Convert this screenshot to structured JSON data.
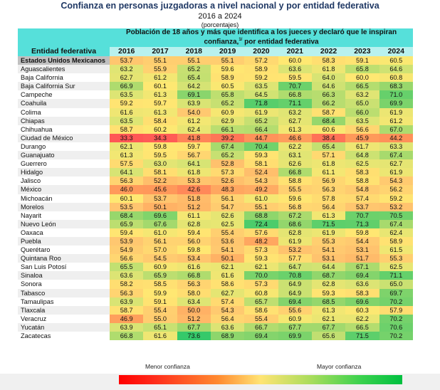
{
  "header": {
    "title": "Confianza en personas juzgadoras a nivel nacional y por entidad federativa",
    "subtitle": "2016 a 2024",
    "unit": "(porcentajes)"
  },
  "chart_data": {
    "type": "heatmap",
    "title": "Confianza en personas juzgadoras a nivel nacional y por entidad federativa",
    "subtitle": "2016 a 2024",
    "unit": "porcentajes",
    "group_header_line1": "Población de 18 años y más que identifica a los jueces y declaró que le inspiran",
    "group_header_line2_pre": "confianza,",
    "group_header_footnote": "1/",
    "group_header_line2_post": " por entidad federativa",
    "row_header": "Entidad federativa",
    "columns": [
      "2016",
      "2017",
      "2018",
      "2019",
      "2020",
      "2021",
      "2022",
      "2023",
      "2024"
    ],
    "color_scale": {
      "low_label": "Menor confianza",
      "high_label": "Mayor confianza",
      "low_color": "#ff0000",
      "mid_color": "#ffe474",
      "high_color": "#00c040"
    },
    "rows": [
      {
        "name": "Estados Unidos Mexicanos",
        "values": [
          53.7,
          55.1,
          55.1,
          55.1,
          57.2,
          60.0,
          58.3,
          59.1,
          60.5
        ]
      },
      {
        "name": "Aguascalientes",
        "values": [
          63.2,
          55.9,
          65.2,
          59.6,
          58.9,
          63.6,
          61.8,
          65.8,
          64.6
        ]
      },
      {
        "name": "Baja California",
        "values": [
          62.7,
          61.2,
          65.4,
          58.9,
          59.2,
          59.5,
          64.0,
          60.0,
          60.8
        ]
      },
      {
        "name": "Baja California Sur",
        "values": [
          66.9,
          60.1,
          64.2,
          60.5,
          63.5,
          70.7,
          64.6,
          66.5,
          68.3
        ]
      },
      {
        "name": "Campeche",
        "values": [
          63.5,
          61.3,
          69.1,
          65.8,
          64.5,
          66.8,
          66.3,
          63.2,
          71.0
        ]
      },
      {
        "name": "Coahuila",
        "values": [
          59.2,
          59.7,
          63.9,
          65.2,
          71.8,
          71.1,
          66.2,
          65.0,
          69.9
        ]
      },
      {
        "name": "Colima",
        "values": [
          61.6,
          61.3,
          54.0,
          60.9,
          61.9,
          63.2,
          58.7,
          66.0,
          61.9
        ]
      },
      {
        "name": "Chiapas",
        "values": [
          63.5,
          58.4,
          61.2,
          62.9,
          65.2,
          62.7,
          68.4,
          63.5,
          61.2
        ]
      },
      {
        "name": "Chihuahua",
        "values": [
          58.7,
          60.2,
          62.4,
          66.1,
          66.4,
          61.3,
          60.6,
          56.6,
          67.0
        ]
      },
      {
        "name": "Ciudad de México",
        "values": [
          33.3,
          34.3,
          41.8,
          39.2,
          44.7,
          46.6,
          38.4,
          45.9,
          44.2
        ]
      },
      {
        "name": "Durango",
        "values": [
          62.1,
          59.8,
          59.7,
          67.4,
          70.4,
          62.2,
          65.4,
          61.7,
          63.3
        ]
      },
      {
        "name": "Guanajuato",
        "values": [
          61.3,
          59.5,
          56.7,
          65.2,
          59.3,
          63.1,
          57.1,
          64.8,
          67.4
        ]
      },
      {
        "name": "Guerrero",
        "values": [
          57.5,
          63.0,
          64.1,
          52.8,
          58.1,
          62.6,
          61.8,
          62.5,
          62.7
        ]
      },
      {
        "name": "Hidalgo",
        "values": [
          64.1,
          58.1,
          61.8,
          57.3,
          52.4,
          66.8,
          61.1,
          58.3,
          61.9
        ]
      },
      {
        "name": "Jalisco",
        "values": [
          56.3,
          52.2,
          53.3,
          52.6,
          54.3,
          58.8,
          56.9,
          58.8,
          54.3
        ]
      },
      {
        "name": "México",
        "values": [
          46.0,
          45.6,
          42.6,
          48.3,
          49.2,
          55.5,
          56.3,
          54.8,
          56.2
        ]
      },
      {
        "name": "Michoacán",
        "values": [
          60.1,
          53.7,
          51.8,
          56.1,
          61.0,
          59.6,
          57.8,
          57.4,
          59.2
        ]
      },
      {
        "name": "Morelos",
        "values": [
          53.5,
          50.1,
          51.2,
          54.7,
          55.1,
          56.8,
          56.4,
          53.7,
          53.2
        ]
      },
      {
        "name": "Nayarit",
        "values": [
          68.4,
          69.6,
          61.1,
          62.6,
          68.8,
          67.2,
          61.3,
          70.7,
          70.5
        ]
      },
      {
        "name": "Nuevo León",
        "values": [
          65.9,
          67.6,
          62.8,
          62.5,
          72.4,
          68.6,
          71.5,
          71.3,
          67.4
        ]
      },
      {
        "name": "Oaxaca",
        "values": [
          59.4,
          61.0,
          59.4,
          55.4,
          57.6,
          62.8,
          61.9,
          59.8,
          62.4
        ]
      },
      {
        "name": "Puebla",
        "values": [
          53.9,
          56.1,
          56.0,
          53.6,
          48.2,
          61.9,
          55.3,
          54.4,
          58.9
        ]
      },
      {
        "name": "Querétaro",
        "values": [
          54.9,
          57.0,
          59.8,
          54.1,
          57.3,
          53.2,
          54.1,
          53.1,
          61.5
        ]
      },
      {
        "name": "Quintana Roo",
        "values": [
          56.6,
          54.5,
          53.4,
          50.1,
          59.3,
          57.7,
          53.1,
          51.7,
          55.3
        ]
      },
      {
        "name": "San Luis Potosí",
        "values": [
          65.5,
          60.9,
          61.6,
          62.1,
          62.1,
          64.7,
          64.4,
          67.1,
          62.5
        ]
      },
      {
        "name": "Sinaloa",
        "values": [
          63.6,
          65.9,
          66.8,
          61.6,
          70.0,
          70.8,
          68.7,
          69.4,
          71.1
        ]
      },
      {
        "name": "Sonora",
        "values": [
          58.2,
          58.5,
          56.3,
          58.6,
          57.3,
          64.9,
          62.8,
          63.6,
          65.0
        ]
      },
      {
        "name": "Tabasco",
        "values": [
          56.3,
          59.9,
          58.0,
          62.7,
          60.8,
          64.9,
          59.3,
          58.3,
          69.7
        ]
      },
      {
        "name": "Tamaulipas",
        "values": [
          63.9,
          59.1,
          63.4,
          57.4,
          65.7,
          69.4,
          68.5,
          69.6,
          70.2
        ]
      },
      {
        "name": "Tlaxcala",
        "values": [
          58.7,
          55.4,
          50.0,
          54.3,
          58.6,
          55.6,
          61.3,
          60.3,
          57.9
        ]
      },
      {
        "name": "Veracruz",
        "values": [
          46.9,
          55.0,
          51.2,
          56.4,
          55.4,
          60.9,
          62.1,
          62.2,
          70.2
        ]
      },
      {
        "name": "Yucatán",
        "values": [
          63.9,
          65.1,
          67.7,
          63.6,
          66.7,
          67.7,
          67.7,
          66.5,
          70.6
        ]
      },
      {
        "name": "Zacatecas",
        "values": [
          66.8,
          61.6,
          73.6,
          68.9,
          69.4,
          69.9,
          65.6,
          71.5,
          70.2
        ]
      }
    ]
  },
  "legend": {
    "low_label": "Menor confianza",
    "high_label": "Mayor confianza"
  }
}
